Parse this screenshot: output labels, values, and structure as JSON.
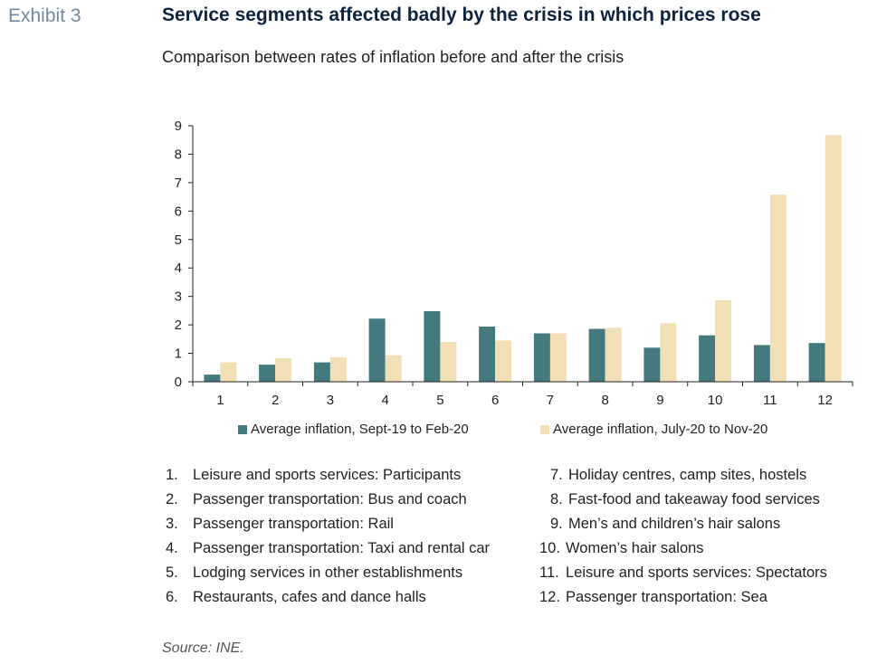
{
  "exhibit_label": "Exhibit 3",
  "colors": {
    "series1": "#447a7e",
    "series2": "#f1dfb6",
    "title": "#0d2340",
    "exhibit": "#6f8aa3"
  },
  "chart_data": {
    "type": "bar",
    "title": "Service segments affected badly by the crisis in which prices rose",
    "subtitle": "Comparison between rates of inflation before and after the crisis",
    "categories": [
      "1",
      "2",
      "3",
      "4",
      "5",
      "6",
      "7",
      "8",
      "9",
      "10",
      "11",
      "12"
    ],
    "series": [
      {
        "name": "Average inflation, Sept-19 to Feb-20",
        "values": [
          0.25,
          0.6,
          0.68,
          2.22,
          2.48,
          1.94,
          1.7,
          1.86,
          1.2,
          1.63,
          1.29,
          1.36
        ]
      },
      {
        "name": "Average inflation, July-20 to Nov-20",
        "values": [
          0.68,
          0.83,
          0.86,
          0.93,
          1.4,
          1.45,
          1.7,
          1.9,
          2.06,
          2.87,
          6.58,
          8.67
        ]
      }
    ],
    "y_ticks": [
      "0",
      "1",
      "2",
      "3",
      "4",
      "5",
      "6",
      "7",
      "8",
      "9"
    ],
    "ylim": [
      0,
      9
    ],
    "xlabel": "",
    "ylabel": "",
    "grid": false,
    "legend_position": "bottom"
  },
  "notes": {
    "left": [
      {
        "num": "1.",
        "text": "Leisure and sports services: Participants"
      },
      {
        "num": "2.",
        "text": "Passenger transportation: Bus and coach"
      },
      {
        "num": "3.",
        "text": "Passenger transportation: Rail"
      },
      {
        "num": "4.",
        "text": "Passenger transportation: Taxi and rental car"
      },
      {
        "num": "5.",
        "text": "Lodging services in other establishments"
      },
      {
        "num": "6.",
        "text": "Restaurants, cafes and dance halls"
      }
    ],
    "right": [
      {
        "num": "7.",
        "text": "Holiday centres, camp sites, hostels"
      },
      {
        "num": "8.",
        "text": "Fast-food and takeaway food services"
      },
      {
        "num": "9.",
        "text": "Men’s and children’s hair salons"
      },
      {
        "num": "10.",
        "text": "Women’s hair salons"
      },
      {
        "num": "11.",
        "text": "Leisure and sports services: Spectators"
      },
      {
        "num": "12.",
        "text": "Passenger transportation: Sea"
      }
    ]
  },
  "source": "Source: INE."
}
